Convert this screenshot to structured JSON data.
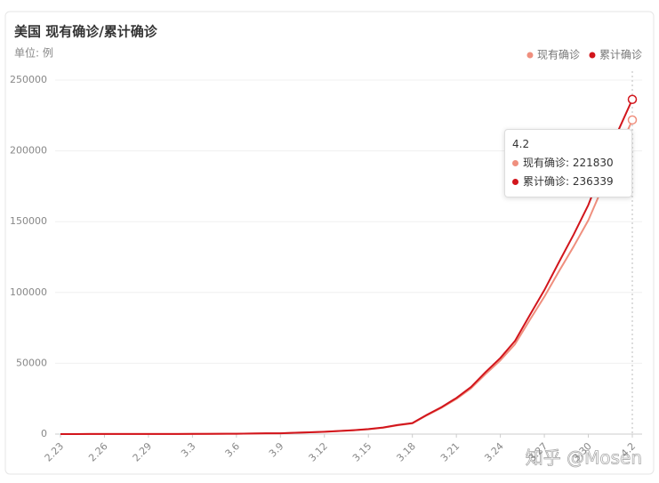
{
  "chart_data": {
    "type": "line",
    "title": "美国 现有确诊/累计确诊",
    "subtitle": "单位: 例",
    "watermark": "知乎 @Mosen",
    "categories": [
      "2.23",
      null,
      null,
      "2.26",
      null,
      null,
      "2.29",
      null,
      null,
      "3.3",
      null,
      null,
      "3.6",
      null,
      null,
      "3.9",
      null,
      null,
      "3.12",
      null,
      null,
      "3.15",
      null,
      null,
      "3.18",
      null,
      null,
      "3.21",
      null,
      null,
      "3.24",
      null,
      null,
      "3.27",
      null,
      null,
      "3.30",
      null,
      null,
      "4.2"
    ],
    "series": [
      {
        "name": "现有确诊",
        "color": "#ef8f7e",
        "values": [
          28,
          28,
          46,
          46,
          52,
          52,
          59,
          64,
          86,
          102,
          129,
          195,
          237,
          372,
          483,
          545,
          912,
          1225,
          1597,
          2104,
          2639,
          3387,
          4491,
          6223,
          7533,
          13319,
          18644,
          24788,
          32330,
          42449,
          52068,
          63500,
          80500,
          97000,
          115000,
          132500,
          151000,
          175000,
          198500,
          221830
        ]
      },
      {
        "name": "累计确诊",
        "color": "#d2151c",
        "values": [
          35,
          35,
          53,
          53,
          59,
          60,
          68,
          74,
          98,
          118,
          149,
          217,
          262,
          402,
          518,
          583,
          959,
          1281,
          1663,
          2179,
          2726,
          3499,
          4632,
          6421,
          7786,
          13680,
          19101,
          25493,
          33276,
          43847,
          53740,
          65778,
          83836,
          101657,
          121478,
          140886,
          161807,
          188172,
          213372,
          236339
        ]
      }
    ],
    "ylim": [
      0,
      250000
    ],
    "yticks": [
      0,
      50000,
      100000,
      150000,
      200000,
      250000
    ],
    "grid": true,
    "legend": "top-right",
    "tooltip": [
      "现有确诊: 221830",
      "累计确诊: 236339"
    ]
  }
}
